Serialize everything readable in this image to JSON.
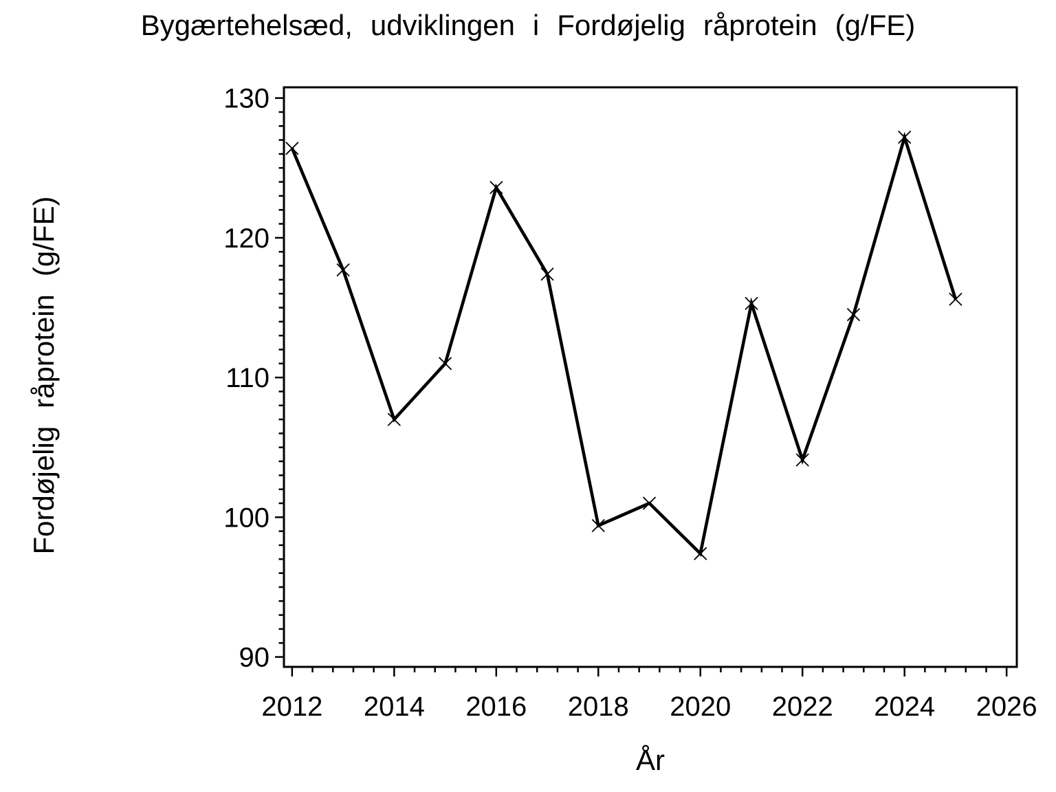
{
  "page": {
    "background_color": "#ffffff",
    "foreground_color": "#000000"
  },
  "chart_data": {
    "type": "line",
    "title": "Bygærtehelsæd, udviklingen i Fordøjelig råprotein (g/FE)",
    "xlabel": "År",
    "ylabel": "Fordøjelig råprotein (g/FE)",
    "grid": false,
    "legend": "none",
    "series": [
      {
        "name": "Fordøjelig råprotein",
        "marker": "x",
        "color": "#000000",
        "x": [
          2012,
          2013,
          2014,
          2015,
          2016,
          2017,
          2018,
          2019,
          2020,
          2021,
          2022,
          2023,
          2024,
          2025
        ],
        "values": [
          126.4,
          117.7,
          107.0,
          111.0,
          123.6,
          117.4,
          99.4,
          101.0,
          97.4,
          115.3,
          104.1,
          114.5,
          127.2,
          115.6
        ]
      }
    ],
    "x_axis": {
      "lim": [
        2011.84,
        2026.2
      ],
      "major_ticks": [
        2012,
        2014,
        2016,
        2018,
        2020,
        2022,
        2024,
        2026
      ],
      "tick_labels": [
        "2012",
        "2014",
        "2016",
        "2018",
        "2020",
        "2022",
        "2024",
        "2026"
      ],
      "minor_tick_step": 0.4
    },
    "y_axis": {
      "lim": [
        89.29,
        130.77
      ],
      "major_ticks": [
        90,
        100,
        110,
        120,
        130
      ],
      "tick_labels": [
        "90",
        "100",
        "110",
        "120",
        "130"
      ],
      "minor_tick_step": 1
    }
  }
}
